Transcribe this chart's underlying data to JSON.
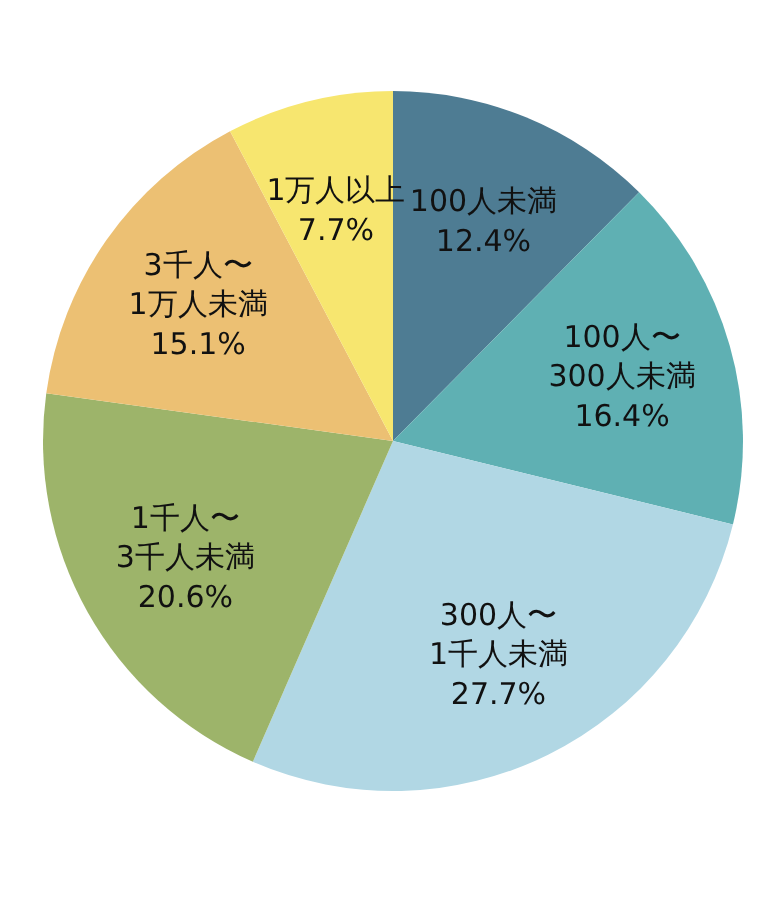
{
  "chart_data": {
    "type": "pie",
    "categories": [
      "100人未満",
      "100人〜\n300人未満",
      "300人〜\n1千人未満",
      "1千人〜\n3千人未満",
      "3千人〜\n1万人未満",
      "1万人以上"
    ],
    "values": [
      12.4,
      16.4,
      27.7,
      20.6,
      15.1,
      7.7
    ],
    "colors": [
      "#4e7c93",
      "#5fb0b3",
      "#b1d7e4",
      "#9db46a",
      "#ecc073",
      "#f7e66f"
    ],
    "value_labels": [
      "12.4%",
      "16.4%",
      "27.7%",
      "20.6%",
      "15.1%",
      "7.7%"
    ]
  }
}
